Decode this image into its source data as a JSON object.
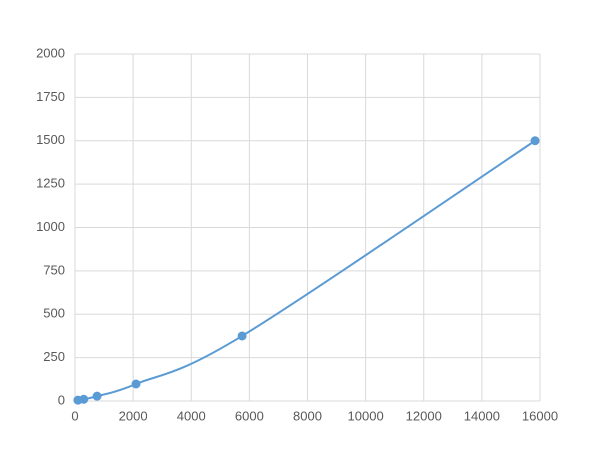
{
  "chart_data": {
    "type": "line",
    "smooth": true,
    "markers": true,
    "x": [
      100,
      300,
      760,
      2100,
      5750,
      15830
    ],
    "series": [
      {
        "color": "#5b9bd5",
        "values": [
          5,
          10,
          28,
          98,
          375,
          1500
        ]
      }
    ],
    "xlim": [
      0,
      16000
    ],
    "xticks": [
      0,
      2000,
      4000,
      6000,
      8000,
      10000,
      12000,
      14000,
      16000
    ],
    "ylim": [
      0,
      2000
    ],
    "yticks": [
      0,
      250,
      500,
      750,
      1000,
      1250,
      1500,
      1750,
      2000
    ],
    "grid": true
  }
}
